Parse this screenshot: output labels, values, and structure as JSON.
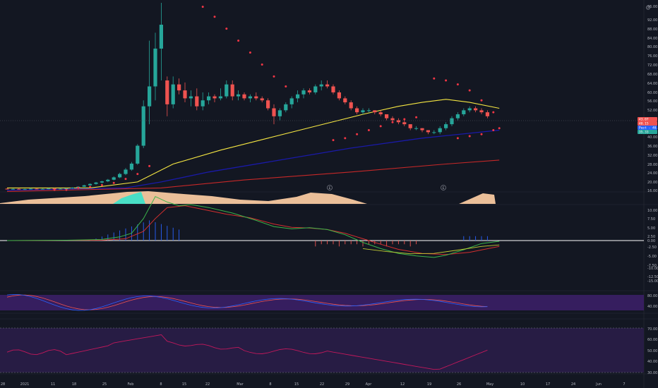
{
  "colors": {
    "background": "#131722",
    "up": "#26a69a",
    "down": "#ef5350",
    "sar": "#f23645",
    "ma_fast": "#f5e642",
    "ma_mid": "#1a1aa8",
    "ma_slow": "#c62828",
    "macd": "#3ab54a",
    "signal": "#d32f2f",
    "hist_up": "#2962ff",
    "hist_down": "#ef5350",
    "stoch_k": "#2962ff",
    "stoch_d": "#ef5350",
    "rsi": "#c2185b",
    "band": "#3b1f66",
    "rsi_band": "#2a1d48"
  },
  "chart_data": {
    "type": "candlestick",
    "x_labels": [
      "28",
      "2021",
      "11",
      "18",
      "25",
      "Feb",
      "8",
      "15",
      "22",
      "Mar",
      "8",
      "15",
      "22",
      "29",
      "Apr",
      "12",
      "19",
      "26",
      "May",
      "10",
      "17",
      "24",
      "Jun",
      "7"
    ],
    "price_axis": {
      "ticks": [
        "96.00",
        "92.00",
        "88.00",
        "84.00",
        "80.00",
        "76.00",
        "72.00",
        "68.00",
        "64.00",
        "60.00",
        "56.00",
        "52.00",
        "48.00",
        "44.00",
        "40.00",
        "36.00",
        "32.00",
        "28.00",
        "24.00",
        "20.00",
        "16.00",
        "12.00",
        "8.00"
      ],
      "range": [
        4,
        99
      ],
      "tags": [
        {
          "label": "43.07",
          "value": 41.9,
          "color": "#ef5350"
        },
        {
          "label": "40.15",
          "value": 40.1,
          "color": "#ef5350"
        },
        {
          "label": "Past - 40.15",
          "value": 38.0,
          "color": "#2962ff"
        },
        {
          "label": "35.33",
          "value": 35.3,
          "color": "#26a69a"
        }
      ]
    },
    "candles": [
      [
        5.6,
        5.8,
        5.2,
        5.4
      ],
      [
        5.4,
        5.7,
        5.1,
        5.5
      ],
      [
        5.5,
        5.8,
        5.2,
        5.3
      ],
      [
        5.3,
        5.6,
        5.0,
        5.4
      ],
      [
        5.4,
        5.9,
        5.2,
        5.6
      ],
      [
        5.6,
        5.8,
        5.3,
        5.4
      ],
      [
        5.4,
        5.7,
        5.2,
        5.5
      ],
      [
        5.5,
        5.9,
        5.3,
        5.7
      ],
      [
        5.7,
        6.0,
        5.4,
        5.5
      ],
      [
        5.5,
        5.8,
        5.3,
        5.6
      ],
      [
        5.6,
        6.0,
        5.4,
        5.8
      ],
      [
        5.8,
        6.3,
        5.6,
        6.1
      ],
      [
        6.1,
        6.8,
        5.9,
        6.6
      ],
      [
        6.6,
        7.6,
        6.4,
        7.3
      ],
      [
        7.3,
        8.3,
        7.1,
        8.0
      ],
      [
        8.0,
        9.0,
        7.6,
        8.7
      ],
      [
        8.7,
        9.6,
        8.2,
        9.3
      ],
      [
        9.3,
        10.5,
        8.9,
        10.1
      ],
      [
        10.1,
        11.8,
        9.8,
        11.3
      ],
      [
        11.3,
        13.6,
        10.9,
        13.0
      ],
      [
        13.0,
        16.0,
        12.4,
        15.2
      ],
      [
        15.2,
        19.0,
        14.6,
        18.2
      ],
      [
        18.2,
        28.0,
        17.6,
        27.2
      ],
      [
        27.2,
        50.0,
        26.0,
        47.0
      ],
      [
        47.0,
        80.0,
        38.0,
        57.0
      ],
      [
        57.0,
        84.0,
        50.0,
        76.0
      ],
      [
        76.0,
        99.0,
        60.0,
        88.0
      ],
      [
        60.0,
        62.0,
        42.0,
        48.0
      ],
      [
        48.0,
        62.0,
        46.0,
        58.0
      ],
      [
        58.0,
        61.0,
        53.0,
        55.0
      ],
      [
        55.0,
        59.0,
        49.0,
        51.0
      ],
      [
        51.0,
        55.0,
        47.0,
        52.0
      ],
      [
        52.0,
        56.0,
        45.0,
        47.0
      ],
      [
        47.0,
        54.0,
        45.0,
        50.0
      ],
      [
        50.0,
        54.0,
        48.0,
        52.0
      ],
      [
        52.0,
        53.0,
        49.0,
        51.0
      ],
      [
        51.0,
        56.0,
        50.0,
        52.0
      ],
      [
        52.0,
        60.0,
        51.0,
        58.0
      ],
      [
        58.0,
        60.0,
        50.0,
        52.0
      ],
      [
        52.0,
        55.0,
        50.0,
        53.0
      ],
      [
        53.0,
        54.0,
        50.0,
        51.0
      ],
      [
        51.0,
        53.0,
        49.0,
        52.0
      ],
      [
        52.0,
        54.0,
        50.0,
        51.0
      ],
      [
        51.0,
        52.0,
        49.0,
        50.0
      ],
      [
        50.0,
        51.0,
        45.0,
        46.0
      ],
      [
        46.0,
        48.0,
        38.0,
        42.0
      ],
      [
        42.0,
        46.0,
        40.0,
        45.0
      ],
      [
        45.0,
        49.0,
        44.0,
        48.0
      ],
      [
        48.0,
        52.0,
        46.0,
        51.0
      ],
      [
        51.0,
        55.0,
        49.0,
        53.0
      ],
      [
        53.0,
        56.0,
        51.0,
        55.0
      ],
      [
        55.0,
        56.0,
        53.0,
        54.0
      ],
      [
        54.0,
        58.0,
        53.0,
        57.0
      ],
      [
        57.0,
        60.0,
        55.0,
        58.0
      ],
      [
        58.0,
        60.0,
        56.0,
        57.0
      ],
      [
        57.0,
        58.0,
        53.0,
        54.0
      ],
      [
        54.0,
        55.0,
        50.0,
        51.0
      ],
      [
        51.0,
        52.0,
        48.0,
        49.0
      ],
      [
        49.0,
        50.0,
        45.0,
        46.0
      ],
      [
        46.0,
        47.0,
        43.0,
        44.0
      ],
      [
        44.0,
        46.0,
        43.0,
        45.0
      ],
      [
        45.0,
        46.0,
        44.0,
        45.0
      ],
      [
        45.0,
        45.0,
        43.0,
        44.0
      ],
      [
        44.0,
        45.0,
        42.0,
        43.0
      ],
      [
        43.0,
        43.0,
        40.0,
        41.0
      ],
      [
        41.0,
        42.0,
        39.0,
        40.0
      ],
      [
        40.0,
        41.0,
        38.0,
        39.0
      ],
      [
        39.0,
        40.0,
        37.0,
        38.0
      ],
      [
        38.0,
        38.0,
        35.0,
        36.0
      ],
      [
        36.0,
        37.0,
        35.0,
        36.0
      ],
      [
        36.0,
        36.0,
        34.0,
        35.0
      ],
      [
        35.0,
        35.0,
        33.0,
        34.0
      ],
      [
        34.0,
        35.0,
        33.0,
        34.0
      ],
      [
        34.0,
        37.0,
        33.0,
        36.0
      ],
      [
        36.0,
        39.0,
        35.0,
        38.0
      ],
      [
        38.0,
        42.0,
        37.0,
        41.0
      ],
      [
        41.0,
        44.0,
        40.0,
        43.0
      ],
      [
        43.0,
        46.0,
        42.0,
        45.0
      ],
      [
        45.0,
        47.0,
        44.0,
        46.0
      ],
      [
        46.0,
        47.0,
        44.0,
        45.0
      ],
      [
        45.0,
        46.0,
        43.0,
        44.0
      ],
      [
        44.0,
        45.0,
        41.0,
        42.0
      ]
    ],
    "ma_fast": [
      [
        0,
        6
      ],
      [
        14,
        6
      ],
      [
        22,
        9
      ],
      [
        28,
        18
      ],
      [
        36,
        25
      ],
      [
        44,
        31
      ],
      [
        52,
        37
      ],
      [
        60,
        43
      ],
      [
        66,
        47
      ],
      [
        70,
        49
      ],
      [
        74,
        50.5
      ],
      [
        78,
        49
      ],
      [
        83,
        46
      ]
    ],
    "ma_mid": [
      [
        0,
        4.8
      ],
      [
        20,
        6
      ],
      [
        26,
        9
      ],
      [
        34,
        14
      ],
      [
        46,
        20
      ],
      [
        58,
        26
      ],
      [
        70,
        31
      ],
      [
        83,
        35
      ]
    ],
    "ma_slow": [
      [
        0,
        4.2
      ],
      [
        26,
        6
      ],
      [
        40,
        10
      ],
      [
        58,
        14
      ],
      [
        74,
        18
      ],
      [
        83,
        20
      ]
    ],
    "sar": [
      [
        8,
        5
      ],
      [
        10,
        5
      ],
      [
        12,
        6
      ],
      [
        14,
        6.5
      ],
      [
        16,
        7.4
      ],
      [
        18,
        8.5
      ],
      [
        20,
        10.5
      ],
      [
        22,
        13
      ],
      [
        24,
        17
      ],
      [
        33,
        97
      ],
      [
        35,
        92
      ],
      [
        37,
        86
      ],
      [
        39,
        80
      ],
      [
        41,
        74
      ],
      [
        43,
        68
      ],
      [
        45,
        62
      ],
      [
        47,
        57
      ],
      [
        55,
        30
      ],
      [
        57,
        31
      ],
      [
        59,
        33
      ],
      [
        61,
        35
      ],
      [
        63,
        37
      ],
      [
        65,
        39
      ],
      [
        67,
        40.5
      ],
      [
        69,
        41.5
      ],
      [
        72,
        61
      ],
      [
        74,
        60
      ],
      [
        76,
        58
      ],
      [
        78,
        55
      ],
      [
        80,
        50
      ],
      [
        82,
        44
      ],
      [
        76,
        31
      ],
      [
        78,
        32
      ],
      [
        80,
        33
      ],
      [
        82,
        35
      ],
      [
        83,
        36
      ]
    ],
    "macd_axis": [
      "10.00",
      "7.50",
      "5.00",
      "2.50",
      "0.00",
      "-2.50",
      "-5.00",
      "-7.50",
      "-10.00",
      "-12.50",
      "-15.00"
    ],
    "stoch_axis": [
      "80.00",
      "40.00"
    ],
    "rsi_axis": [
      "70.00",
      "60.00",
      "50.00",
      "40.00",
      "30.00"
    ]
  }
}
